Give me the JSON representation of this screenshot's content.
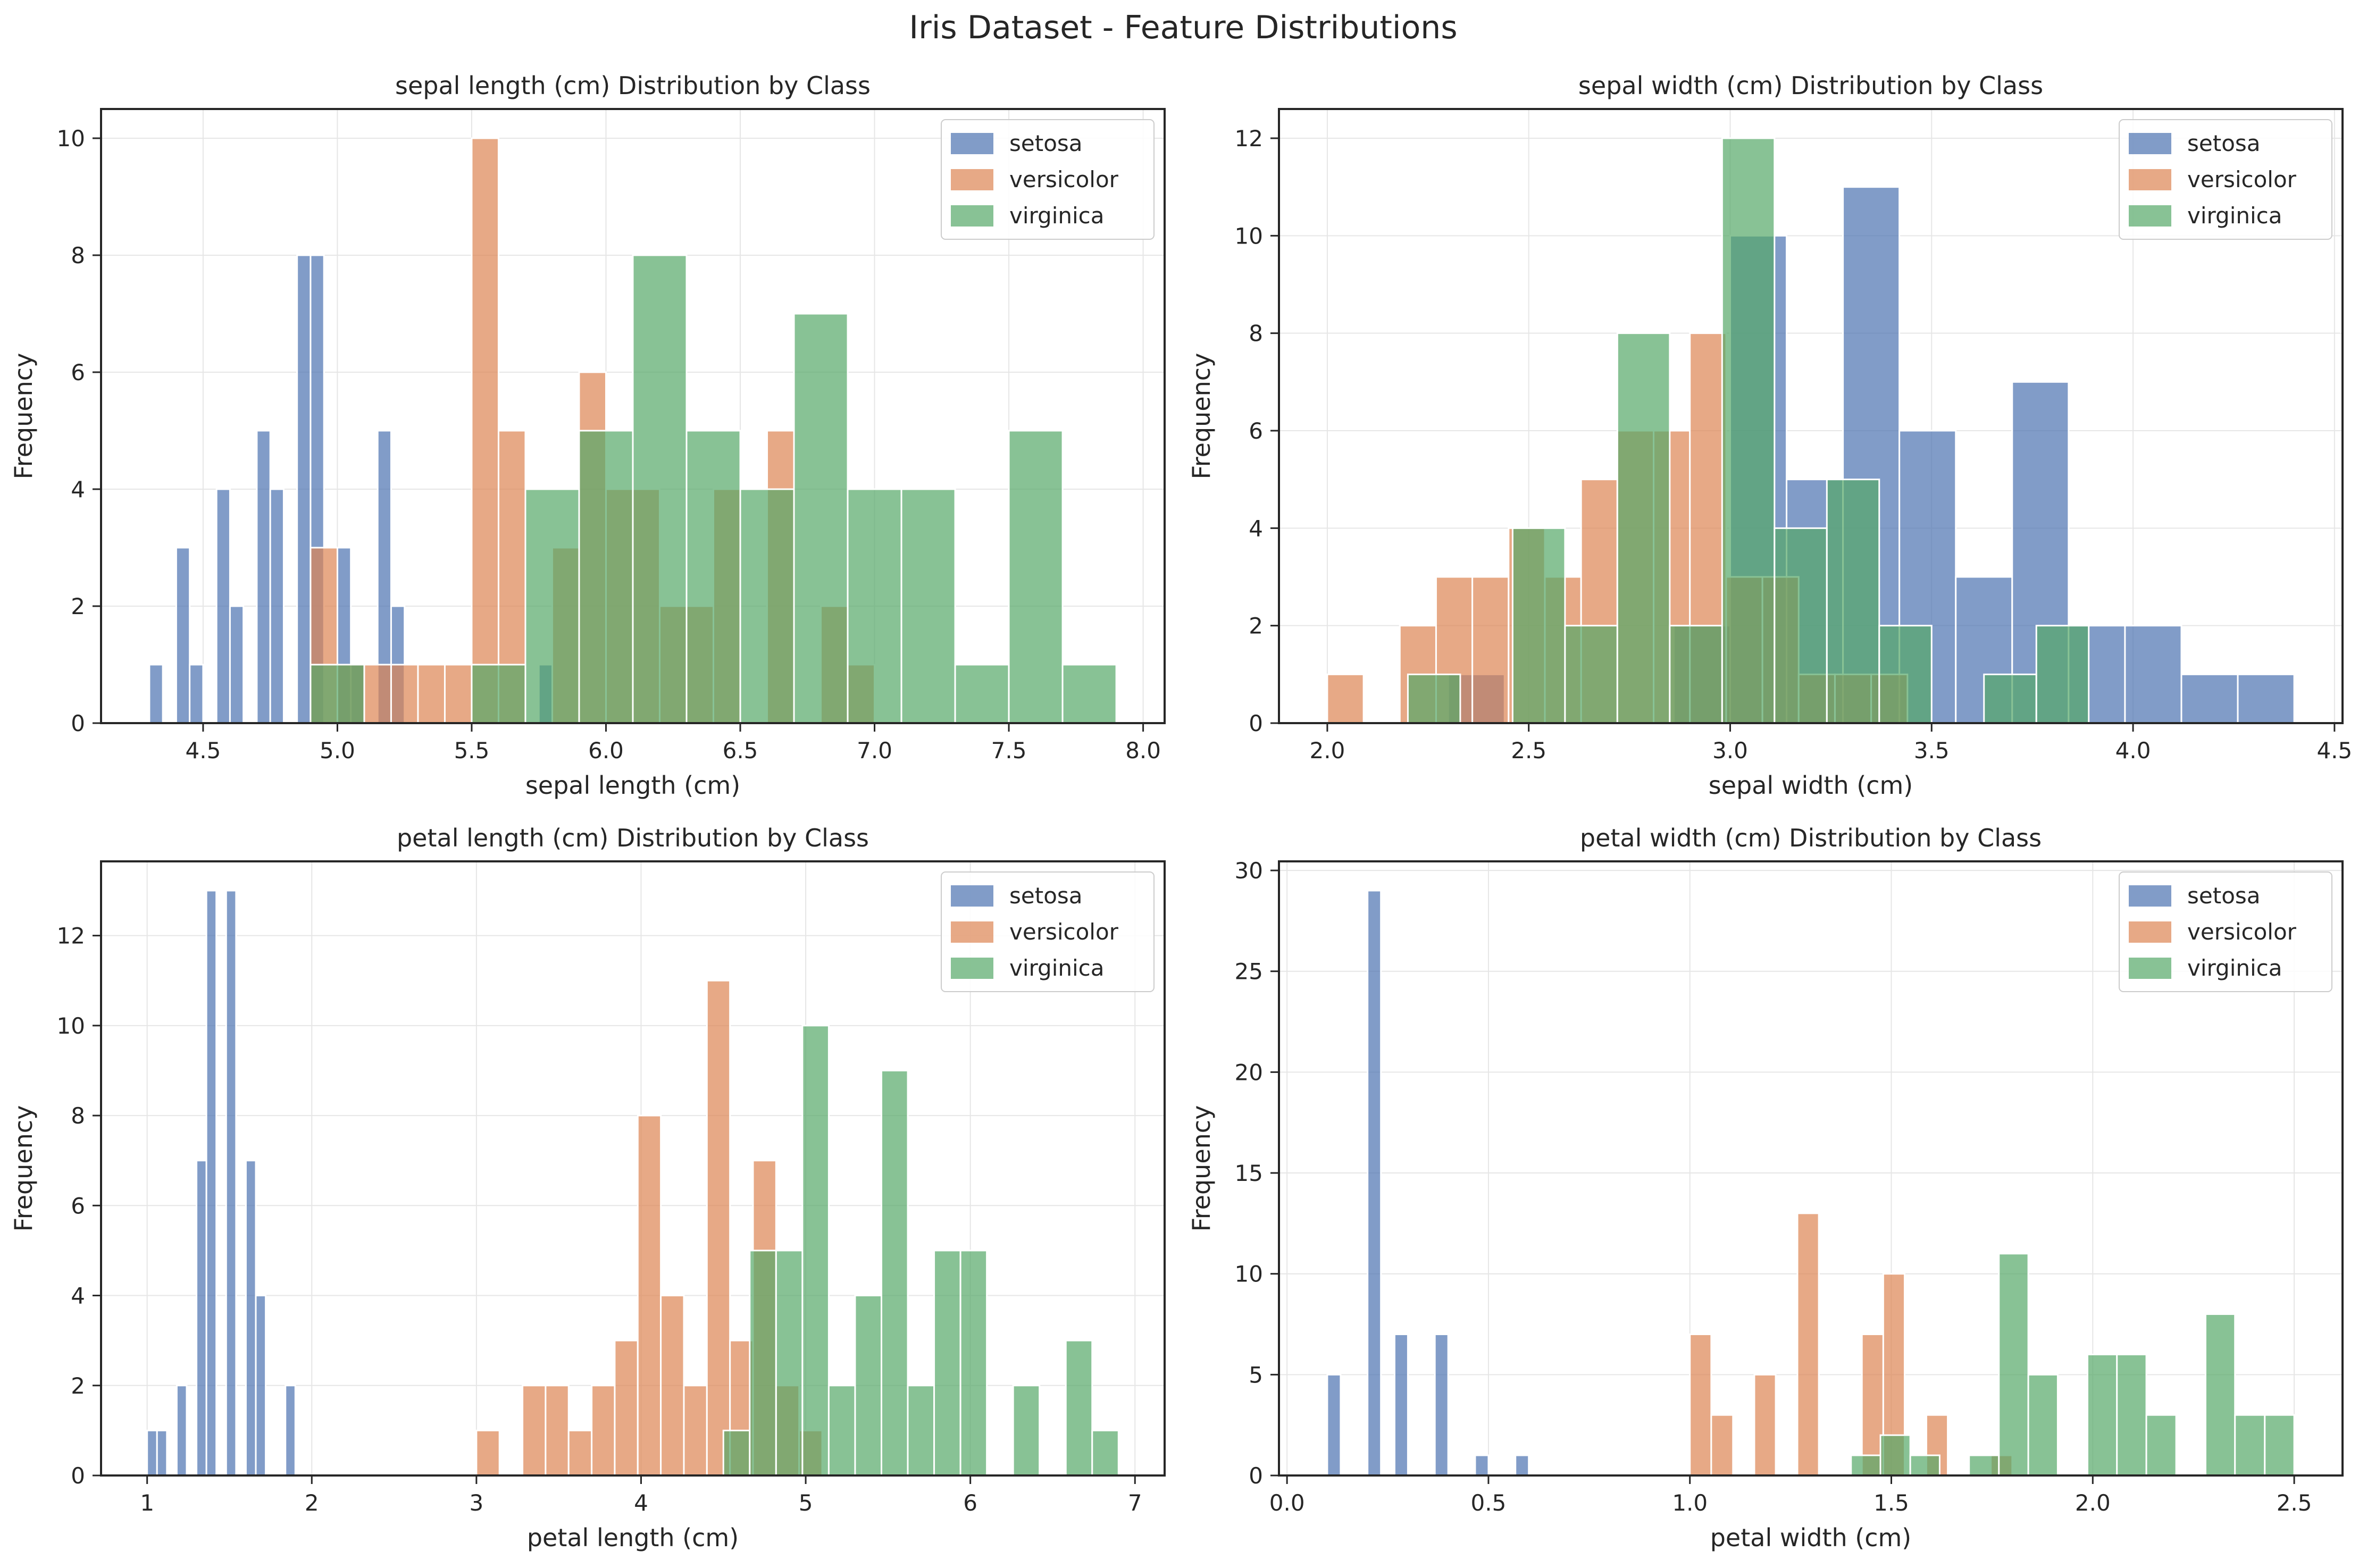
{
  "figure": {
    "suptitle": "Iris Dataset - Feature Distributions"
  },
  "colors": {
    "setosa": "#4c72b0",
    "versicolor": "#dd8452",
    "virginica": "#55a868",
    "grid": "#e6e6e6",
    "axis": "#262626"
  },
  "legend": {
    "placement": "upper right",
    "entries": [
      "setosa",
      "versicolor",
      "virginica"
    ]
  },
  "chart_data": [
    {
      "type": "bar",
      "title": "sepal length (cm) Distribution by Class",
      "xlabel": "sepal length (cm)",
      "ylabel": "Frequency",
      "xlim": [
        4.12,
        8.08
      ],
      "ylim": [
        0,
        10.5
      ],
      "xticks": [
        "4.5",
        "5.0",
        "5.5",
        "6.0",
        "6.5",
        "7.0",
        "7.5",
        "8.0"
      ],
      "yticks": [
        "0",
        "2",
        "4",
        "6",
        "8",
        "10"
      ],
      "grid": true,
      "legend": "upper right",
      "series": [
        {
          "name": "setosa",
          "bins": [
            4.3,
            4.35,
            4.4,
            4.45,
            4.5,
            4.55,
            4.6,
            4.65,
            4.7,
            4.75,
            4.8,
            4.85,
            4.9,
            4.95,
            5.0,
            5.05,
            5.1,
            5.15,
            5.2,
            5.25,
            5.3,
            5.35,
            5.4,
            5.45,
            5.5,
            5.55,
            5.6,
            5.65,
            5.7,
            5.75,
            5.8
          ],
          "counts": [
            1,
            0,
            3,
            1,
            0,
            4,
            2,
            0,
            5,
            4,
            0,
            8,
            8,
            0,
            3,
            1,
            0,
            5,
            2,
            0,
            0,
            0,
            0,
            0,
            0,
            0,
            0,
            0,
            0,
            1
          ]
        },
        {
          "name": "versicolor",
          "bins": [
            4.9,
            5.0,
            5.1,
            5.2,
            5.3,
            5.4,
            5.5,
            5.6,
            5.7,
            5.8,
            5.9,
            6.0,
            6.1,
            6.2,
            6.3,
            6.4,
            6.5,
            6.6,
            6.7,
            6.8,
            6.9,
            7.0
          ],
          "counts": [
            3,
            1,
            1,
            1,
            1,
            1,
            10,
            5,
            0,
            3,
            6,
            4,
            4,
            2,
            2,
            4,
            0,
            5,
            0,
            2,
            1
          ]
        },
        {
          "name": "virginica",
          "bins": [
            4.9,
            5.1,
            5.3,
            5.5,
            5.7,
            5.9,
            6.1,
            6.3,
            6.5,
            6.7,
            6.9,
            7.1,
            7.3,
            7.5,
            7.7,
            7.9
          ],
          "counts": [
            1,
            0,
            0,
            1,
            4,
            5,
            8,
            5,
            4,
            7,
            4,
            4,
            1,
            5,
            1
          ]
        }
      ]
    },
    {
      "type": "bar",
      "title": "sepal width (cm) Distribution by Class",
      "xlabel": "sepal width (cm)",
      "ylabel": "Frequency",
      "xlim": [
        1.88,
        4.52
      ],
      "ylim": [
        0,
        12.6
      ],
      "xticks": [
        "2.0",
        "2.5",
        "3.0",
        "3.5",
        "4.0",
        "4.5"
      ],
      "yticks": [
        "0",
        "2",
        "4",
        "6",
        "8",
        "10",
        "12"
      ],
      "grid": true,
      "legend": "upper right",
      "series": [
        {
          "name": "setosa",
          "bins": [
            2.3,
            2.44,
            2.58,
            2.72,
            2.86,
            3.0,
            3.14,
            3.28,
            3.42,
            3.56,
            3.7,
            3.84,
            3.98,
            4.12,
            4.26,
            4.4
          ],
          "counts": [
            1,
            0,
            0,
            0,
            2,
            10,
            5,
            11,
            6,
            3,
            7,
            2,
            2,
            1,
            1
          ]
        },
        {
          "name": "versicolor",
          "bins": [
            2.0,
            2.09,
            2.18,
            2.27,
            2.36,
            2.45,
            2.54,
            2.63,
            2.72,
            2.81,
            2.9,
            2.99,
            3.08,
            3.17,
            3.26,
            3.35,
            3.44
          ],
          "counts": [
            1,
            0,
            2,
            3,
            3,
            4,
            3,
            5,
            6,
            6,
            8,
            3,
            3,
            1,
            1,
            1
          ]
        },
        {
          "name": "virginica",
          "bins": [
            2.2,
            2.33,
            2.46,
            2.59,
            2.72,
            2.85,
            2.98,
            3.11,
            3.24,
            3.37,
            3.5,
            3.63,
            3.76,
            3.89
          ],
          "counts": [
            1,
            0,
            4,
            2,
            8,
            2,
            12,
            4,
            5,
            2,
            0,
            1,
            2
          ]
        }
      ]
    },
    {
      "type": "bar",
      "title": "petal length (cm) Distribution by Class",
      "xlabel": "petal length (cm)",
      "ylabel": "Frequency",
      "xlim": [
        0.72,
        7.18
      ],
      "ylim": [
        0,
        13.65
      ],
      "xticks": [
        "1",
        "2",
        "3",
        "4",
        "5",
        "6",
        "7"
      ],
      "yticks": [
        "0",
        "2",
        "4",
        "6",
        "8",
        "10",
        "12"
      ],
      "grid": true,
      "legend": "upper right",
      "series": [
        {
          "name": "setosa",
          "bins": [
            1.0,
            1.06,
            1.12,
            1.18,
            1.24,
            1.3,
            1.36,
            1.42,
            1.48,
            1.54,
            1.6,
            1.66,
            1.72,
            1.78,
            1.84,
            1.9
          ],
          "counts": [
            1,
            1,
            0,
            2,
            0,
            7,
            13,
            0,
            13,
            0,
            7,
            4,
            0,
            0,
            2
          ]
        },
        {
          "name": "versicolor",
          "bins": [
            3.0,
            3.14,
            3.28,
            3.42,
            3.56,
            3.7,
            3.84,
            3.98,
            4.12,
            4.26,
            4.4,
            4.54,
            4.68,
            4.82,
            4.96,
            5.1
          ],
          "counts": [
            1,
            0,
            2,
            2,
            1,
            2,
            3,
            8,
            4,
            2,
            11,
            3,
            7,
            2,
            1
          ]
        },
        {
          "name": "virginica",
          "bins": [
            4.5,
            4.66,
            4.82,
            4.98,
            5.14,
            5.3,
            5.46,
            5.62,
            5.78,
            5.94,
            6.1,
            6.26,
            6.42,
            6.58,
            6.74,
            6.9
          ],
          "counts": [
            1,
            5,
            5,
            10,
            2,
            4,
            9,
            2,
            5,
            5,
            0,
            2,
            0,
            3,
            1
          ]
        }
      ]
    },
    {
      "type": "bar",
      "title": "petal width (cm) Distribution by Class",
      "xlabel": "petal width (cm)",
      "ylabel": "Frequency",
      "xlim": [
        -0.02,
        2.62
      ],
      "ylim": [
        0,
        30.45
      ],
      "xticks": [
        "0.0",
        "0.5",
        "1.0",
        "1.5",
        "2.0",
        "2.5"
      ],
      "yticks": [
        "0",
        "5",
        "10",
        "15",
        "20",
        "25",
        "30"
      ],
      "grid": true,
      "legend": "upper right",
      "series": [
        {
          "name": "setosa",
          "bins": [
            0.1,
            0.133,
            0.167,
            0.2,
            0.233,
            0.267,
            0.3,
            0.333,
            0.367,
            0.4,
            0.433,
            0.467,
            0.5,
            0.533,
            0.567,
            0.6
          ],
          "counts": [
            5,
            0,
            0,
            29,
            0,
            7,
            0,
            0,
            7,
            0,
            0,
            1,
            0,
            0,
            1
          ]
        },
        {
          "name": "versicolor",
          "bins": [
            1.0,
            1.053,
            1.107,
            1.16,
            1.213,
            1.267,
            1.32,
            1.373,
            1.427,
            1.48,
            1.533,
            1.587,
            1.64,
            1.693,
            1.747,
            1.8
          ],
          "counts": [
            7,
            3,
            0,
            5,
            0,
            13,
            0,
            0,
            7,
            10,
            0,
            3,
            0,
            0,
            1
          ]
        },
        {
          "name": "virginica",
          "bins": [
            1.4,
            1.473,
            1.547,
            1.62,
            1.693,
            1.767,
            1.84,
            1.913,
            1.987,
            2.06,
            2.133,
            2.207,
            2.28,
            2.353,
            2.427,
            2.5
          ],
          "counts": [
            1,
            2,
            1,
            0,
            1,
            11,
            5,
            0,
            6,
            6,
            3,
            0,
            8,
            3,
            3
          ]
        }
      ]
    }
  ]
}
